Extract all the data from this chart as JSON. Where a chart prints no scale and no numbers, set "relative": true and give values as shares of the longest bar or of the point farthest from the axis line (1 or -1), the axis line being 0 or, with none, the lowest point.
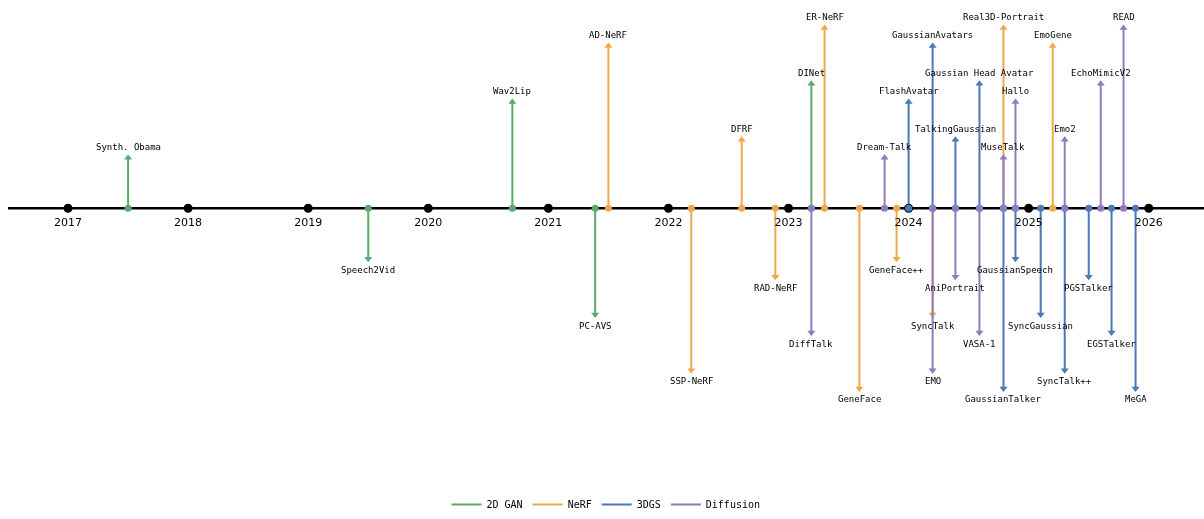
{
  "chart_data": {
    "type": "lollipop",
    "relative": true,
    "grid": false,
    "legend": "bottom",
    "marker": "triangle",
    "line_style": "solid",
    "xlim": [
      2016.5,
      2026.46
    ],
    "xticks": [
      2017,
      2018,
      2019,
      2020,
      2021,
      2022,
      2023,
      2024,
      2025,
      2026
    ],
    "series": [
      {
        "name": "2D GAN",
        "color": "#5aaa6a",
        "x": [
          2017.5,
          2019.5,
          2020.7,
          2021.39,
          2023.19
        ],
        "values": [
          0.28,
          -0.28,
          0.59,
          -0.59,
          0.69
        ]
      },
      {
        "name": "NeRF",
        "color": "#f0a84a",
        "x": [
          2021.5,
          2022.19,
          2022.61,
          2022.89,
          2023.3,
          2023.59,
          2023.9,
          2024.2,
          2024.79,
          2025.2
        ],
        "values": [
          0.9,
          -0.9,
          0.38,
          -0.38,
          1,
          -1,
          -0.28,
          -0.59,
          1,
          0.9
        ]
      },
      {
        "name": "3DGS",
        "color": "#4a78b8",
        "x": [
          2024,
          2024.2,
          2024.39,
          2024.59,
          2024.79,
          2024.89,
          2025.1,
          2025.3,
          2025.5,
          2025.69,
          2025.89
        ],
        "values": [
          0.59,
          0.9,
          0.38,
          0.69,
          -1,
          -0.28,
          -0.59,
          -0.9,
          -0.38,
          -0.69,
          -1
        ]
      },
      {
        "name": "Diffusion",
        "color": "#8c7cc0",
        "x": [
          2023.19,
          2023.8,
          2024.2,
          2024.39,
          2024.59,
          2024.79,
          2024.89,
          2025.3,
          2025.6,
          2025.79
        ],
        "values": [
          -0.69,
          0.28,
          -0.9,
          -0.38,
          -0.69,
          0.28,
          0.59,
          0.38,
          0.69,
          1
        ]
      }
    ],
    "annotations": [
      {
        "text": "Synth. Obama",
        "x": 2017.5,
        "y": 0.28
      },
      {
        "text": "Speech2Vid",
        "x": 2019.5,
        "y": -0.28
      },
      {
        "text": "Wav2Lip",
        "x": 2020.7,
        "y": 0.59
      },
      {
        "text": "PC-AVS",
        "x": 2021.39,
        "y": -0.59
      },
      {
        "text": "DINet",
        "x": 2023.19,
        "y": 0.69
      },
      {
        "text": "AD-NeRF",
        "x": 2021.5,
        "y": 0.9
      },
      {
        "text": "SSP-NeRF",
        "x": 2022.19,
        "y": -0.9
      },
      {
        "text": "DFRF",
        "x": 2022.61,
        "y": 0.38
      },
      {
        "text": "RAD-NeRF",
        "x": 2022.89,
        "y": -0.38
      },
      {
        "text": "ER-NeRF",
        "x": 2023.3,
        "y": 1
      },
      {
        "text": "GeneFace",
        "x": 2023.59,
        "y": -1
      },
      {
        "text": "GeneFace++",
        "x": 2023.9,
        "y": -0.28
      },
      {
        "text": "SyncTalk",
        "x": 2024.2,
        "y": -0.59
      },
      {
        "text": "Real3D-Portrait",
        "x": 2024.79,
        "y": 1
      },
      {
        "text": "EmoGene",
        "x": 2025.2,
        "y": 0.9
      },
      {
        "text": "FlashAvatar",
        "x": 2024,
        "y": 0.59
      },
      {
        "text": "GaussianAvatars",
        "x": 2024.2,
        "y": 0.9
      },
      {
        "text": "TalkingGaussian",
        "x": 2024.39,
        "y": 0.38
      },
      {
        "text": "Gaussian Head Avatar",
        "x": 2024.59,
        "y": 0.69
      },
      {
        "text": "GaussianTalker",
        "x": 2024.79,
        "y": -1
      },
      {
        "text": "GaussianSpeech",
        "x": 2024.89,
        "y": -0.28
      },
      {
        "text": "SyncGaussian",
        "x": 2025.1,
        "y": -0.59
      },
      {
        "text": "SyncTalk++",
        "x": 2025.3,
        "y": -0.9
      },
      {
        "text": "PGSTalker",
        "x": 2025.5,
        "y": -0.38
      },
      {
        "text": "EGSTalker",
        "x": 2025.69,
        "y": -0.69
      },
      {
        "text": "MeGA",
        "x": 2025.89,
        "y": -1
      },
      {
        "text": "DiffTalk",
        "x": 2023.19,
        "y": -0.69
      },
      {
        "text": "Dream-Talk",
        "x": 2023.8,
        "y": 0.28
      },
      {
        "text": "EMO",
        "x": 2024.2,
        "y": -0.9
      },
      {
        "text": "AniPortrait",
        "x": 2024.39,
        "y": -0.38
      },
      {
        "text": "VASA-1",
        "x": 2024.59,
        "y": -0.69
      },
      {
        "text": "MuseTalk",
        "x": 2024.79,
        "y": 0.28
      },
      {
        "text": "Hallo",
        "x": 2024.89,
        "y": 0.59
      },
      {
        "text": "Emo2",
        "x": 2025.3,
        "y": 0.38
      },
      {
        "text": "EchoMimicV2",
        "x": 2025.6,
        "y": 0.69
      },
      {
        "text": "READ",
        "x": 2025.79,
        "y": 1
      }
    ]
  }
}
